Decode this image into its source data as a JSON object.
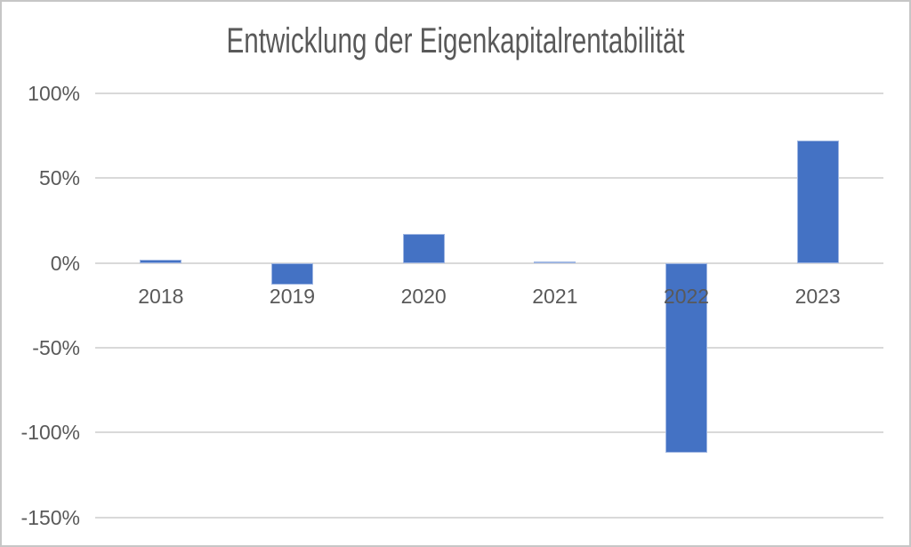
{
  "window": {
    "background": "#ffffff",
    "frame_border_color": "#c6c6c6"
  },
  "chart_data": {
    "type": "bar",
    "title": "Entwicklung der Eigenkapitalrentabilität",
    "subtitle": "",
    "xlabel": "",
    "ylabel": "",
    "unit": "%",
    "categories": [
      "2018",
      "2019",
      "2020",
      "2021",
      "2022",
      "2023"
    ],
    "values": [
      2,
      -13,
      17,
      0.5,
      -112,
      72
    ],
    "ylim": [
      -150,
      100
    ],
    "yticks": [
      100,
      50,
      0,
      -50,
      -100,
      -150
    ],
    "ytick_labels": [
      "100%",
      "50%",
      "0%",
      "-50%",
      "-100%",
      "-150%"
    ],
    "grid": true,
    "legend": false,
    "colors": {
      "bar_fill": "#4472c4",
      "bar_edge": "#9fb6e2",
      "gridline": "#d9d9d9",
      "axis_label_text": "#595959",
      "title_text": "#595959"
    }
  }
}
